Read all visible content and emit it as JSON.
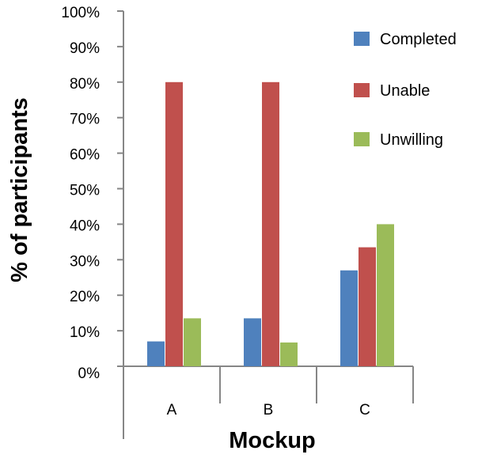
{
  "chart_data": {
    "type": "bar",
    "categories": [
      "A",
      "B",
      "C"
    ],
    "series": [
      {
        "name": "Completed",
        "color": "#4f81bd",
        "values": [
          7,
          13.5,
          27
        ]
      },
      {
        "name": "Unable",
        "color": "#c0504d",
        "values": [
          80,
          80,
          33.5
        ]
      },
      {
        "name": "Unwilling",
        "color": "#9bbb59",
        "values": [
          13.5,
          6.7,
          40
        ]
      }
    ],
    "xlabel": "Mockup",
    "ylabel": "% of participants",
    "ylim": [
      0,
      100
    ],
    "yticks": [
      0,
      10,
      20,
      30,
      40,
      50,
      60,
      70,
      80,
      90,
      100
    ],
    "ytick_labels": [
      "0%",
      "10%",
      "20%",
      "30%",
      "40%",
      "50%",
      "60%",
      "70%",
      "80%",
      "90%",
      "100%"
    ],
    "grid": false,
    "legend": "right"
  }
}
